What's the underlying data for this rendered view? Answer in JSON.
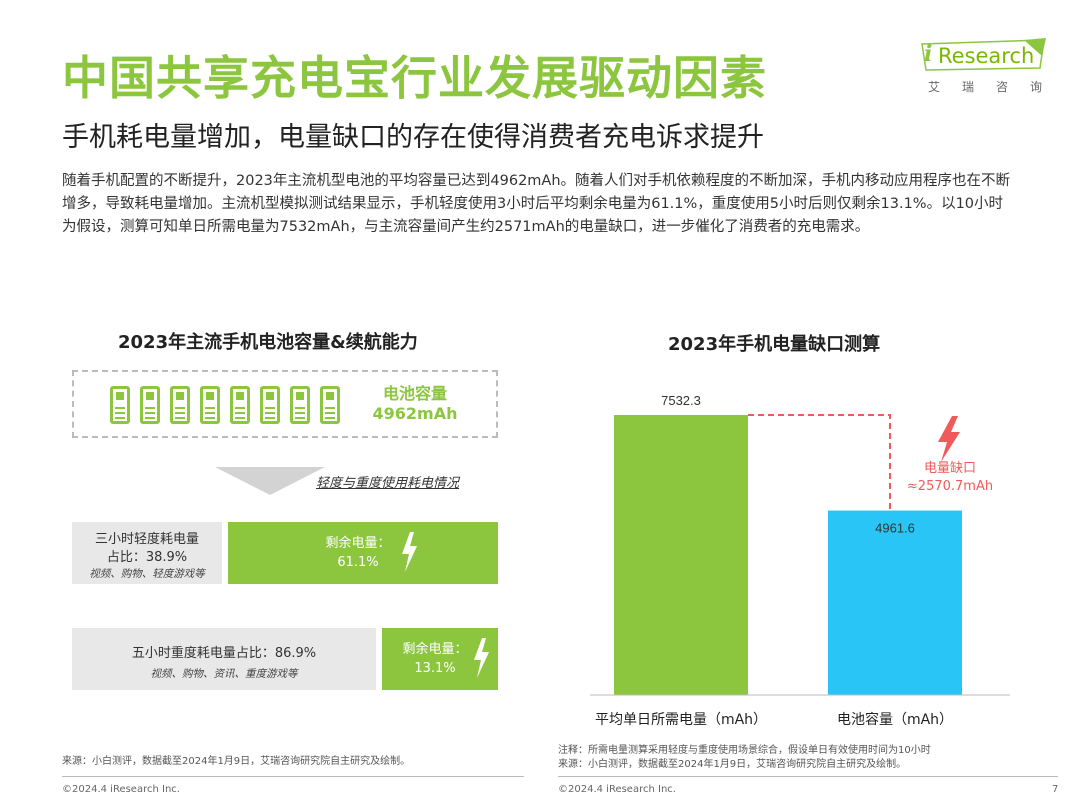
{
  "header": {
    "title": "中国共享充电宝行业发展驱动因素",
    "subtitle": "手机耗电量增加，电量缺口的存在使得消费者充电诉求提升",
    "body": "随着手机配置的不断提升，2023年主流机型电池的平均容量已达到4962mAh。随着人们对手机依赖程度的不断加深，手机内移动应用程序也在不断增多，导致耗电量增加。主流机型模拟测试结果显示，手机轻度使用3小时后平均剩余电量为61.1%，重度使用5小时后则仅剩余13.1%。以10小时为假设，测算可知单日所需电量为7532mAh，与主流容量间产生约2571mAh的电量缺口，进一步催化了消费者的充电需求。"
  },
  "logo": {
    "i": "i",
    "text": "Research",
    "cn": "艾瑞咨询"
  },
  "left_panel": {
    "title": "2023年主流手机电池容量&续航能力",
    "battery_label_1": "电池容量",
    "battery_label_2": "4962mAh",
    "phone_count": 8,
    "usage_caption": "轻度与重度使用耗电情况",
    "light": {
      "line1": "三小时轻度耗电量",
      "line2": "占比：38.9%",
      "examples": "视频、购物、轻度游戏等",
      "remain_label": "剩余电量：",
      "remain_value": "61.1%"
    },
    "heavy": {
      "line1": "五小时重度耗电量占比：86.9%",
      "examples": "视频、购物、资讯、重度游戏等",
      "remain_label": "剩余电量：",
      "remain_value": "13.1%"
    },
    "source": "来源：小白测评，数据截至2024年1月9日，艾瑞咨询研究院自主研究及绘制。"
  },
  "chart_data": {
    "type": "bar",
    "title": "2023年手机电量缺口测算",
    "categories": [
      "平均单日所需电量（mAh）",
      "电池容量（mAh）"
    ],
    "values": [
      7532.3,
      4961.6
    ],
    "value_labels": [
      "7532.3",
      "4961.6"
    ],
    "colors": [
      "#8cc63f",
      "#29c5f6"
    ],
    "gap_label_1": "电量缺口",
    "gap_label_2": "≈2570.7mAh",
    "gap_color": "#f05a5a"
  },
  "right_notes": {
    "note": "注释：所需电量测算采用轻度与重度使用场景综合，假设单日有效使用时间为10小时",
    "source": "来源：小白测评，数据截至2024年1月9日，艾瑞咨询研究院自主研究及绘制。"
  },
  "footer": {
    "copyright": "©2024.4 iResearch Inc.",
    "page": "7"
  }
}
